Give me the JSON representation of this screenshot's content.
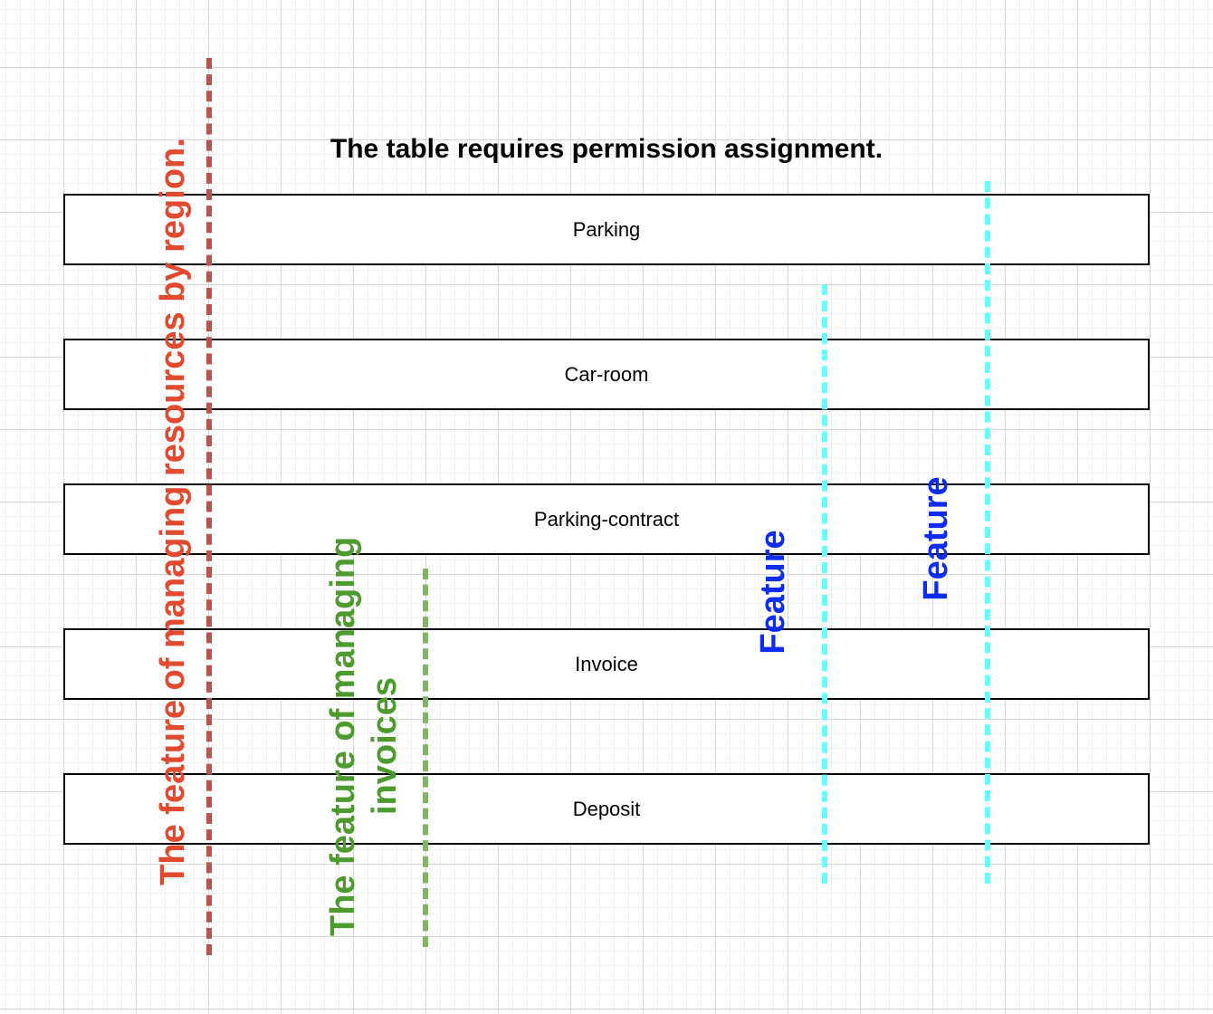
{
  "title": "The table requires permission assignment.",
  "tables": [
    {
      "label": "Parking"
    },
    {
      "label": "Car-room"
    },
    {
      "label": "Parking-contract"
    },
    {
      "label": "Invoice"
    },
    {
      "label": "Deposit"
    }
  ],
  "features": {
    "region": {
      "label": "The feature of managing resources by region.",
      "color": "#b85450"
    },
    "invoice": {
      "line1": "The feature of managing",
      "line2": "invoices",
      "color": "#82b366"
    },
    "feature_a": {
      "label": "Feature",
      "color": "#66ffff"
    },
    "feature_b": {
      "label": "Feature",
      "color": "#66ffff"
    }
  }
}
